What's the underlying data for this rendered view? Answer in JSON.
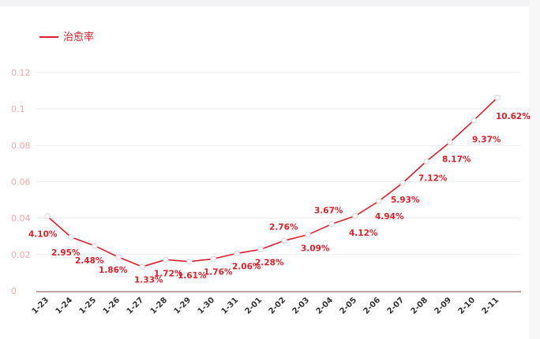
{
  "chart_data": {
    "type": "line",
    "legend": {
      "label": "治愈率",
      "position": "top-left"
    },
    "colors": {
      "series": "#e0202a",
      "point_fill": "#ffffff",
      "point_stroke": "#d9d9de",
      "ytick": "#f3a8a8",
      "xtick": "#333333",
      "grid": "#ededed",
      "axis": "#b9a3a3"
    },
    "ylim": [
      0,
      0.12
    ],
    "yticks": [
      0,
      0.02,
      0.04,
      0.06,
      0.08,
      0.1,
      0.12
    ],
    "ytick_labels": [
      "0",
      "0.02",
      "0.04",
      "0.06",
      "0.08",
      "0.1",
      "0.12"
    ],
    "grid": true,
    "categories": [
      "1-23",
      "1-24",
      "1-25",
      "1-26",
      "1-27",
      "1-28",
      "1-29",
      "1-30",
      "1-31",
      "2-01",
      "2-02",
      "2-03",
      "2-04",
      "2-05",
      "2-06",
      "2-07",
      "2-08",
      "2-09",
      "2-10",
      "2-11"
    ],
    "series": [
      {
        "name": "治愈率",
        "values": [
          0.041,
          0.0295,
          0.0248,
          0.0186,
          0.0133,
          0.0172,
          0.0161,
          0.0176,
          0.0206,
          0.0228,
          0.0276,
          0.0309,
          0.0367,
          0.0412,
          0.0494,
          0.0593,
          0.0712,
          0.0817,
          0.0937,
          0.1062
        ],
        "labels": [
          "4.10%",
          "2.95%",
          "2.48%",
          "1.86%",
          "1.33%",
          "1.72%",
          "1.61%",
          "1.76%",
          "2.06%",
          "2.28%",
          "2.76%",
          "3.09%",
          "3.67%",
          "4.12%",
          "4.94%",
          "5.93%",
          "7.12%",
          "8.17%",
          "9.37%",
          "10.62%"
        ]
      }
    ]
  }
}
